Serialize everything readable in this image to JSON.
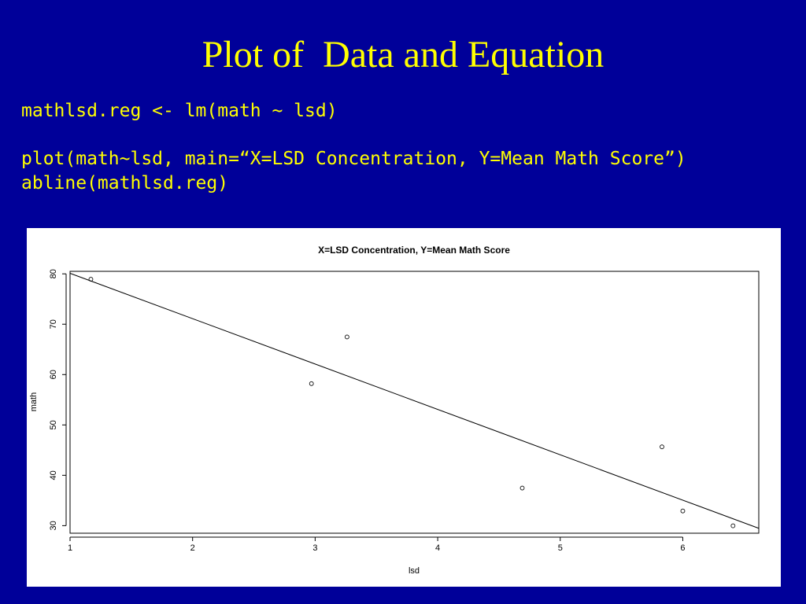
{
  "slide": {
    "title": "Plot of  Data and Equation",
    "code_lines": [
      "mathlsd.reg <- lm(math ~ lsd)",
      "plot(math~lsd, main=“X=LSD Concentration, Y=Mean Math Score”)",
      "abline(mathlsd.reg)"
    ]
  },
  "colors": {
    "background": "#000099",
    "text": "#ffff00",
    "plot_background": "#ffffff",
    "plot_ink": "#000000"
  },
  "chart_data": {
    "type": "scatter",
    "title": "X=LSD Concentration, Y=Mean Math Score",
    "xlabel": "lsd",
    "ylabel": "math",
    "xlim": [
      1,
      6.62
    ],
    "ylim": [
      28.5,
      80.5
    ],
    "x_ticks": [
      1,
      2,
      3,
      4,
      5,
      6
    ],
    "y_ticks": [
      30,
      40,
      50,
      60,
      70,
      80
    ],
    "grid": false,
    "legend": "none",
    "points": [
      {
        "x": 1.17,
        "y": 78.93
      },
      {
        "x": 2.97,
        "y": 58.2
      },
      {
        "x": 3.26,
        "y": 67.47
      },
      {
        "x": 4.69,
        "y": 37.47
      },
      {
        "x": 5.83,
        "y": 45.65
      },
      {
        "x": 6.0,
        "y": 32.92
      },
      {
        "x": 6.41,
        "y": 29.97
      }
    ],
    "regression_line": {
      "intercept": 89.12,
      "slope": -9.01
    }
  }
}
